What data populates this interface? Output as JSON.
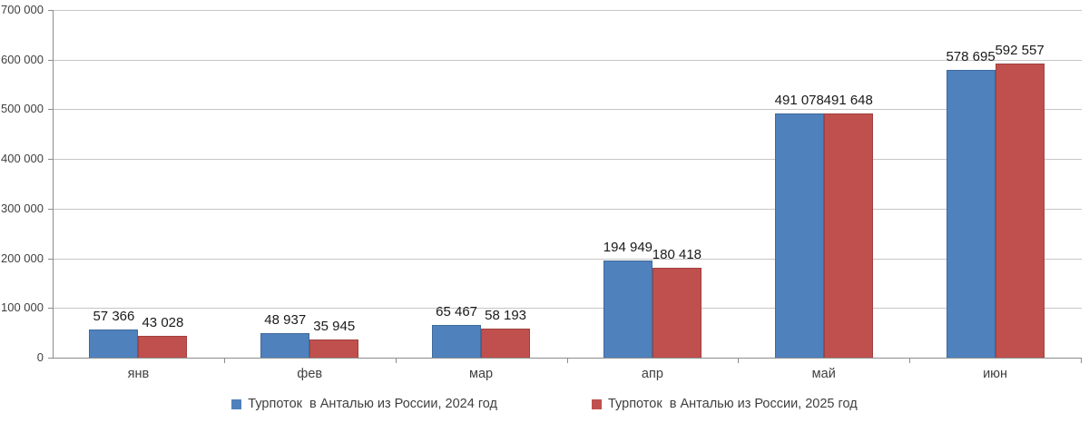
{
  "chart_data": {
    "type": "bar",
    "title": "",
    "xlabel": "",
    "ylabel": "",
    "categories": [
      "янв",
      "фев",
      "мар",
      "апр",
      "май",
      "июн"
    ],
    "series": [
      {
        "name": "Турпоток  в Анталью из России, 2024 год",
        "color": "#4f81bd",
        "border_color": "#406a9c",
        "values": [
          57366,
          48937,
          65467,
          194949,
          491078,
          578695
        ]
      },
      {
        "name": "Турпоток  в Анталью из России, 2025 год",
        "color": "#c0504d",
        "border_color": "#a0413f",
        "values": [
          43028,
          35945,
          58193,
          180418,
          491648,
          592557
        ]
      }
    ],
    "ylim": [
      0,
      700000
    ],
    "ytick_step": 100000,
    "ytick_labels": [
      "0",
      "100 000",
      "200 000",
      "300 000",
      "400 000",
      "500 000",
      "600 000",
      "700 000"
    ],
    "grid": true,
    "legend_position": "bottom",
    "data_labels": true
  },
  "style": {
    "grid_color": "#c6c6c6",
    "axis_color": "#8c8c8c",
    "axis_text_color": "#3f3f3f",
    "data_label_color": "#1a1a1a",
    "background": "#ffffff"
  }
}
